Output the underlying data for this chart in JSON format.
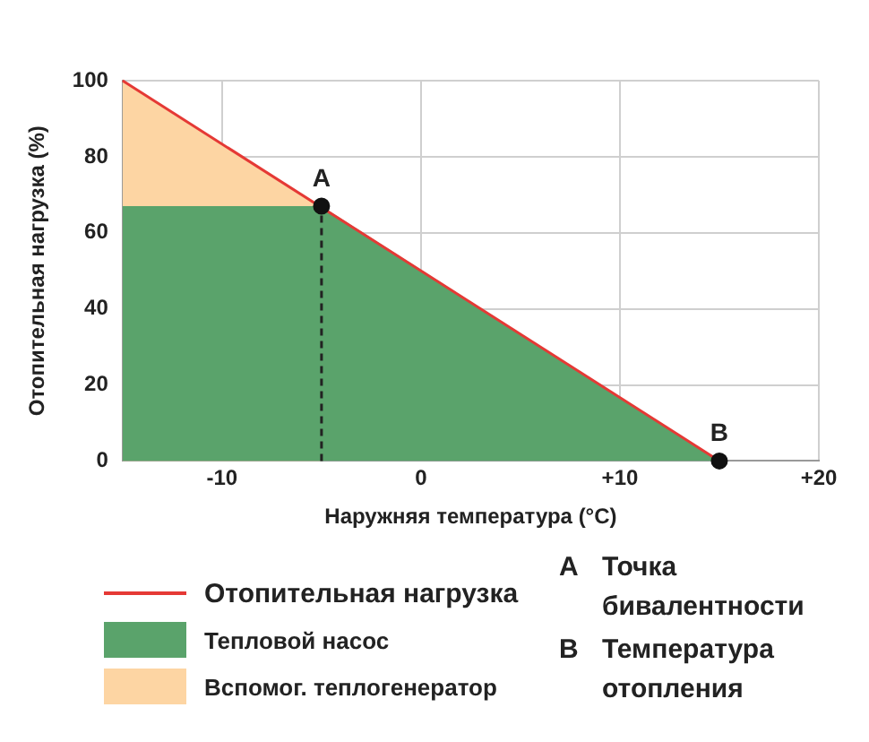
{
  "chart_data": {
    "type": "area",
    "xlabel": "Наружняя температура (°C)",
    "ylabel": "Отопительная нагрузка (%)",
    "xlim": [
      -15,
      20
    ],
    "xticks": [
      -10,
      0,
      {
        "value": 10,
        "label": "+10"
      },
      {
        "value": 20,
        "label": "+20"
      }
    ],
    "ylim": [
      0,
      100
    ],
    "yticks": [
      0,
      20,
      40,
      60,
      80,
      100
    ],
    "grid": true,
    "legend": "bottom left",
    "series": [
      {
        "name": "Отопительная нагрузка",
        "type": "line",
        "color": "#e53935",
        "x": [
          -15,
          15
        ],
        "values": [
          100,
          0
        ],
        "marker": "none"
      },
      {
        "name": "Тепловой насос",
        "type": "area",
        "color": "#5aa36b",
        "x": [
          -15,
          -5,
          15
        ],
        "values": [
          67,
          67,
          0
        ]
      },
      {
        "name": "Вспомог. теплогенератор",
        "type": "area",
        "color": "#fdd5a3",
        "x": [
          -15,
          -5
        ],
        "values": [
          100,
          67
        ]
      },
      {
        "type": "line",
        "color": "#222222",
        "x": [
          -5,
          -5
        ],
        "values": [
          0,
          67
        ],
        "line_style": "dashed",
        "marker": "none"
      },
      {
        "type": "scatter",
        "color": "#111111",
        "x": [
          -5,
          15
        ],
        "values": [
          67,
          0
        ],
        "marker": "circle"
      }
    ],
    "annotations": [
      {
        "text": "A",
        "x": -5,
        "y": 67
      },
      {
        "text": "B",
        "x": 15,
        "y": 0
      },
      "A",
      "Точка бивалентности",
      "B",
      "Температура отопления"
    ]
  }
}
